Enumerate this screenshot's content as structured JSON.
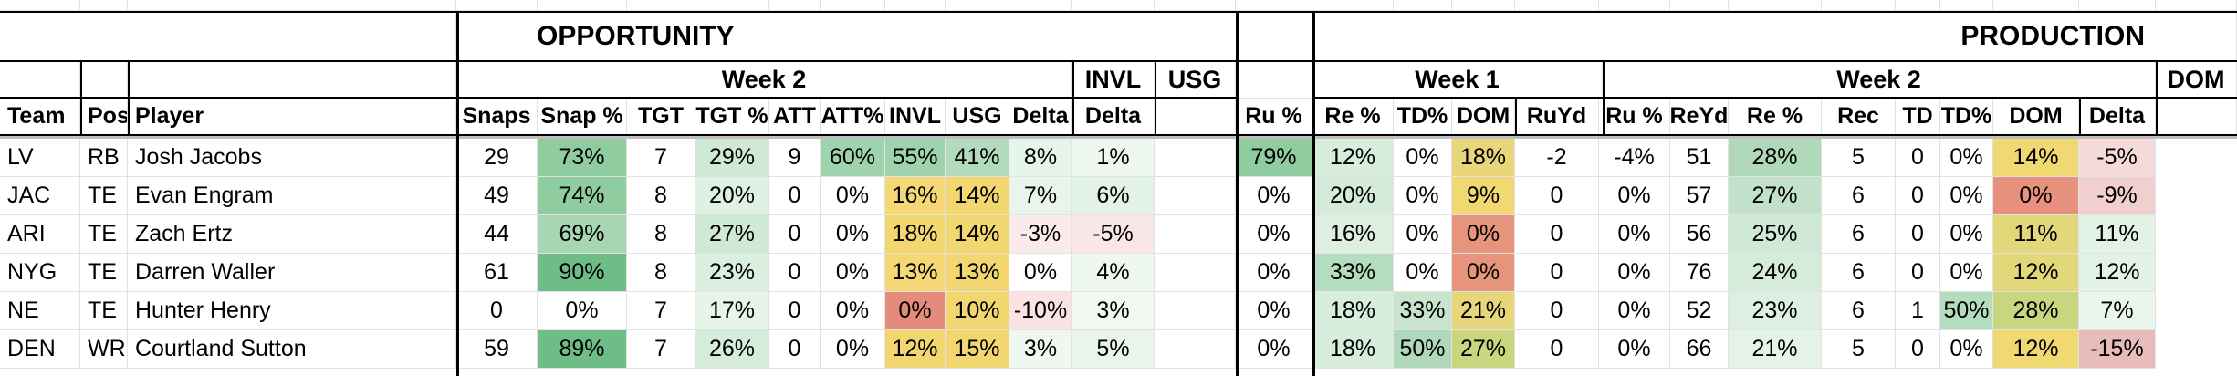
{
  "sheet": {
    "opportunity_title": "OPPORTUNITY",
    "production_title": "PRODUCTION",
    "week2_opp": "Week 2",
    "invl_head": "INVL",
    "usg_head": "USG",
    "week1_prod": "Week 1",
    "week2_prod": "Week 2",
    "dom_head": "DOM",
    "columns": [
      "Team",
      "Pos",
      "Player",
      "Snaps",
      "Snap %",
      "TGT",
      "TGT %",
      "ATT",
      "ATT%",
      "INVL",
      "USG",
      "Delta",
      "Delta",
      "",
      "Ru %",
      "Re %",
      "TD%",
      "DOM",
      "RuYd",
      "Ru %",
      "ReYd",
      "Re %",
      "Rec",
      "TD",
      "TD%",
      "DOM",
      "Delta"
    ],
    "rows": [
      [
        "LV",
        "RB",
        "Josh Jacobs",
        "29",
        "73%",
        "7",
        "29%",
        "9",
        "60%",
        "55%",
        "41%",
        "8%",
        "1%",
        "",
        "79%",
        "12%",
        "0%",
        "18%",
        "-2",
        "-4%",
        "51",
        "28%",
        "5",
        "0",
        "0%",
        "14%",
        "-5%"
      ],
      [
        "JAC",
        "TE",
        "Evan Engram",
        "49",
        "74%",
        "8",
        "20%",
        "0",
        "0%",
        "16%",
        "14%",
        "7%",
        "6%",
        "",
        "0%",
        "20%",
        "0%",
        "9%",
        "0",
        "0%",
        "57",
        "27%",
        "6",
        "0",
        "0%",
        "0%",
        "-9%"
      ],
      [
        "ARI",
        "TE",
        "Zach Ertz",
        "44",
        "69%",
        "8",
        "27%",
        "0",
        "0%",
        "18%",
        "14%",
        "-3%",
        "-5%",
        "",
        "0%",
        "16%",
        "0%",
        "0%",
        "0",
        "0%",
        "56",
        "25%",
        "6",
        "0",
        "0%",
        "11%",
        "11%"
      ],
      [
        "NYG",
        "TE",
        "Darren Waller",
        "61",
        "90%",
        "8",
        "23%",
        "0",
        "0%",
        "13%",
        "13%",
        "0%",
        "4%",
        "",
        "0%",
        "33%",
        "0%",
        "0%",
        "0",
        "0%",
        "76",
        "24%",
        "6",
        "0",
        "0%",
        "12%",
        "12%"
      ],
      [
        "NE",
        "TE",
        "Hunter Henry",
        "0",
        "0%",
        "7",
        "17%",
        "0",
        "0%",
        "0%",
        "10%",
        "-10%",
        "3%",
        "",
        "0%",
        "18%",
        "33%",
        "21%",
        "0",
        "0%",
        "52",
        "23%",
        "6",
        "1",
        "50%",
        "28%",
        "7%"
      ],
      [
        "DEN",
        "WR",
        "Courtland Sutton",
        "59",
        "89%",
        "7",
        "26%",
        "0",
        "0%",
        "12%",
        "15%",
        "3%",
        "5%",
        "",
        "0%",
        "18%",
        "50%",
        "27%",
        "0",
        "0%",
        "66",
        "21%",
        "5",
        "0",
        "0%",
        "12%",
        "-15%"
      ]
    ],
    "fills": [
      [
        "",
        "",
        "",
        "",
        "#8fcc9f",
        "",
        "#cfe9d5",
        "",
        "#9fd3ad",
        "#9fd3ad",
        "#b2dabd",
        "#e6f4e9",
        "#eef7f0",
        "",
        "#8fcc9f",
        "#d8eedd",
        "",
        "#e8d67a",
        "",
        "",
        "",
        "#b0d9ba",
        "",
        "",
        "",
        "#f0d872",
        "#f5dada"
      ],
      [
        "",
        "",
        "",
        "",
        "#8fcc9f",
        "",
        "#dff1e4",
        "",
        "",
        "#f5d775",
        "#f2d770",
        "#e9f5ec",
        "#e3f2e6",
        "",
        "",
        "#d4ebd9",
        "",
        "#f1d872",
        "",
        "",
        "",
        "#c2e1ca",
        "",
        "",
        "",
        "#e8917f",
        "#f2cfcf"
      ],
      [
        "",
        "",
        "",
        "",
        "#a7d6b3",
        "",
        "#cfe9d5",
        "",
        "",
        "#f2d770",
        "#f2d770",
        "#fbeaea",
        "#f9e6e6",
        "",
        "",
        "#deefe2",
        "",
        "#e6947c",
        "",
        "",
        "",
        "#d0e9d6",
        "",
        "",
        "",
        "#e3d879",
        "#e2f2e6"
      ],
      [
        "",
        "",
        "",
        "",
        "#6fbd86",
        "",
        "#dbefe0",
        "",
        "",
        "#f5d775",
        "#f2d770",
        "",
        "#eef7f0",
        "",
        "",
        "#b4dcbf",
        "",
        "#e6947c",
        "",
        "",
        "",
        "#d6ecdb",
        "",
        "",
        "",
        "#e3d879",
        "#e2f2e6"
      ],
      [
        "",
        "",
        "",
        "",
        "",
        "",
        "#e6f4e9",
        "",
        "",
        "#e48c7c",
        "#f2d770",
        "#fbe3e3",
        "#f1f8f2",
        "",
        "",
        "#d8eedd",
        "#c6e4ce",
        "#e8d67a",
        "",
        "",
        "",
        "#dcefe1",
        "",
        "",
        "#b4dcbf",
        "#c9d67f",
        "#eaf5ed"
      ],
      [
        "",
        "",
        "",
        "",
        "#6fbd86",
        "",
        "#d6ecdb",
        "",
        "",
        "#f2d770",
        "#f2d770",
        "#eef7f0",
        "#e9f5ec",
        "",
        "",
        "#d8eedd",
        "#afd9ba",
        "#c9d67f",
        "",
        "",
        "",
        "#e4f2e7",
        "",
        "",
        "",
        "#f0d872",
        "#e9bcbc"
      ]
    ]
  }
}
